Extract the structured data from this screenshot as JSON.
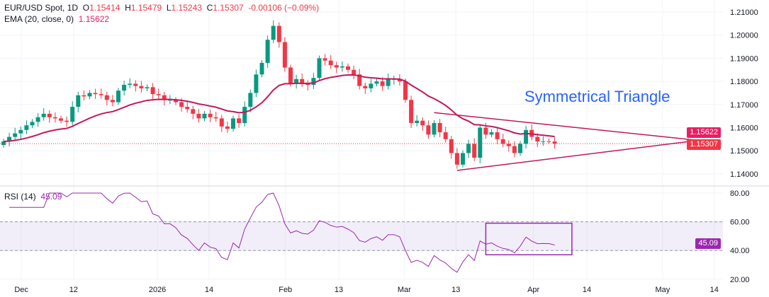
{
  "header": {
    "symbol": "EUR/USD Spot, 1D",
    "o_label": "O",
    "o": "1.15414",
    "h_label": "H",
    "h": "1.15479",
    "l_label": "L",
    "l": "1.15243",
    "c_label": "C",
    "c": "1.15307",
    "change": "-0.00106 (−0.09%)"
  },
  "ema_legend": {
    "label": "EMA (20, close, 0)",
    "value": "1.15622"
  },
  "rsi_legend": {
    "label": "RSI (14)",
    "value": "45.09"
  },
  "annotation": "Symmetrical Triangle",
  "colors": {
    "up": "#089981",
    "down": "#f23645",
    "ema": "#c2185b",
    "rsi": "#9c27b0",
    "tag_ema": "#e91e63",
    "tag_price": "#f23645",
    "annotation": "#2962ff"
  },
  "chart_data": [
    {
      "type": "candlestick",
      "title": "EUR/USD Spot, 1D",
      "ylim": [
        1.135,
        1.213
      ],
      "yticks": [
        "1.21000",
        "1.20000",
        "1.19000",
        "1.18000",
        "1.17000",
        "1.16000",
        "1.15000",
        "1.14000"
      ],
      "ytick_values": [
        1.21,
        1.2,
        1.19,
        1.18,
        1.17,
        1.16,
        1.15,
        1.14
      ],
      "xticks": [
        {
          "label": "Dec",
          "idx": 3.1
        },
        {
          "label": "12",
          "idx": 12.2
        },
        {
          "label": "2026",
          "idx": 26.8
        },
        {
          "label": "14",
          "idx": 35.8
        },
        {
          "label": "Feb",
          "idx": 49.1
        },
        {
          "label": "13",
          "idx": 58.4
        },
        {
          "label": "Mar",
          "idx": 69.8
        },
        {
          "label": "13",
          "idx": 78.8
        },
        {
          "label": "Apr",
          "idx": 92.3
        },
        {
          "label": "14",
          "idx": 101.6
        },
        {
          "label": "May",
          "idx": 114.8
        },
        {
          "label": "14",
          "idx": 123.8
        }
      ],
      "closes": [
        1.154,
        1.156,
        1.1575,
        1.159,
        1.161,
        1.1625,
        1.1645,
        1.166,
        1.1645,
        1.164,
        1.163,
        1.1625,
        1.169,
        1.174,
        1.1735,
        1.175,
        1.1745,
        1.174,
        1.172,
        1.171,
        1.176,
        1.1785,
        1.179,
        1.178,
        1.177,
        1.1775,
        1.1745,
        1.174,
        1.172,
        1.172,
        1.171,
        1.169,
        1.168,
        1.166,
        1.164,
        1.166,
        1.1645,
        1.164,
        1.1605,
        1.1595,
        1.164,
        1.162,
        1.169,
        1.175,
        1.183,
        1.188,
        1.198,
        1.204,
        1.197,
        1.186,
        1.179,
        1.181,
        1.179,
        1.1785,
        1.1815,
        1.19,
        1.189,
        1.187,
        1.186,
        1.1865,
        1.185,
        1.183,
        1.178,
        1.177,
        1.179,
        1.18,
        1.178,
        1.181,
        1.181,
        1.18,
        1.172,
        1.162,
        1.163,
        1.161,
        1.157,
        1.162,
        1.158,
        1.155,
        1.149,
        1.144,
        1.149,
        1.153,
        1.147,
        1.16,
        1.157,
        1.158,
        1.155,
        1.153,
        1.152,
        1.149,
        1.153,
        1.159,
        1.156,
        1.154,
        1.1541,
        1.154,
        1.15307
      ],
      "ema_period": 20,
      "last_price": "1.15307",
      "last_ema": "1.15622",
      "triangle": {
        "upper": [
          [
            75,
            1.1665
          ],
          [
            121,
            1.1545
          ]
        ],
        "lower": [
          [
            79,
            1.1415
          ],
          [
            121,
            1.1545
          ]
        ]
      }
    },
    {
      "type": "line",
      "title": "RSI (14)",
      "ylim": [
        18,
        84
      ],
      "yticks": [
        "80.00",
        "60.00",
        "40.00",
        "20.00"
      ],
      "ytick_values": [
        80,
        60,
        40,
        20
      ],
      "band": [
        40,
        60
      ],
      "last_value": "45.09",
      "highlight_box": {
        "idx": [
          84,
          99
        ],
        "rsi": [
          37,
          59
        ]
      }
    }
  ]
}
